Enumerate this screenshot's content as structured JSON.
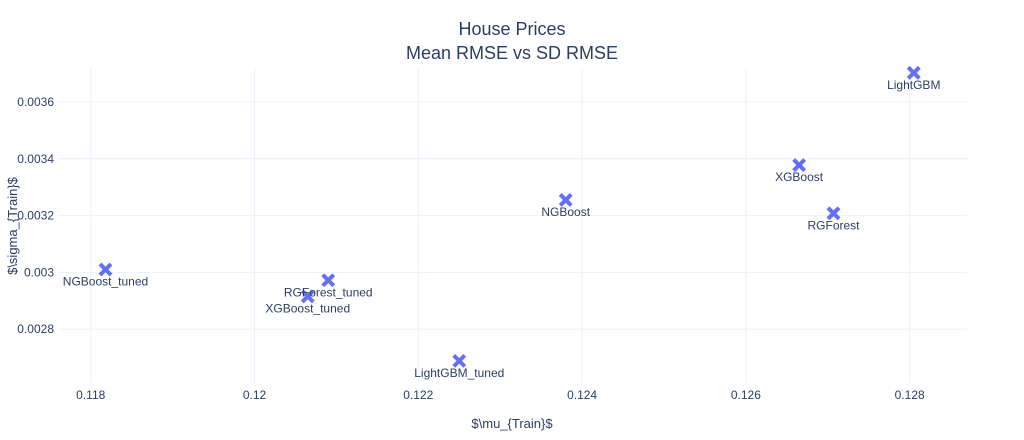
{
  "chart_data": {
    "type": "scatter",
    "title": "House Prices",
    "subtitle": "Mean RMSE vs SD RMSE",
    "xlabel": "$\\mu_{Train}$",
    "ylabel": "$\\sigma_{Train}$",
    "xlim": [
      0.1176,
      0.1287
    ],
    "ylim": [
      0.00261,
      0.00372
    ],
    "x_ticks": [
      0.118,
      0.12,
      0.122,
      0.124,
      0.126,
      0.128
    ],
    "x_tick_labels": [
      "0.118",
      "0.12",
      "0.122",
      "0.124",
      "0.126",
      "0.128"
    ],
    "y_ticks": [
      0.0028,
      0.003,
      0.0032,
      0.0034,
      0.0036
    ],
    "y_tick_labels": [
      "0.0028",
      "0.003",
      "0.0032",
      "0.0034",
      "0.0036"
    ],
    "grid": true,
    "marker": "x",
    "marker_color": "#636efa",
    "points": [
      {
        "label": "NGBoost_tuned",
        "x": 0.11818,
        "y": 0.00301
      },
      {
        "label": "XGBoost_tuned",
        "x": 0.12065,
        "y": 0.002915
      },
      {
        "label": "RGForest_tuned",
        "x": 0.1209,
        "y": 0.002972
      },
      {
        "label": "LightGBM_tuned",
        "x": 0.1225,
        "y": 0.002688
      },
      {
        "label": "NGBoost",
        "x": 0.1238,
        "y": 0.003255
      },
      {
        "label": "XGBoost",
        "x": 0.12665,
        "y": 0.003378
      },
      {
        "label": "RGForest",
        "x": 0.12707,
        "y": 0.003208
      },
      {
        "label": "LightGBM",
        "x": 0.12805,
        "y": 0.003703
      }
    ]
  }
}
